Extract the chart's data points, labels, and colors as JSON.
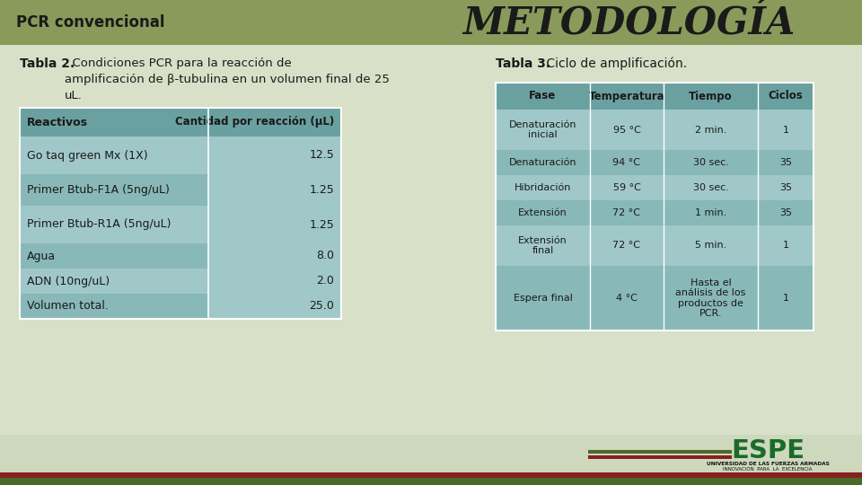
{
  "title": "METODOLOGÍA",
  "subtitle": "PCR convencional",
  "header_color": "#8a9a5b",
  "bg_color": "#d8e0c8",
  "table2_desc_bold": "Tabla 2.",
  "table2_desc_rest": "  Condiciones PCR para la reacción de\namplificación de β-tubulina en un volumen final de 25\nuL.",
  "table3_title_bold": "Tabla 3.",
  "table3_title_rest": " Ciclo de amplificación.",
  "table2_headers": [
    "Reactivos",
    "Cantidad por reacción (μL)"
  ],
  "table2_rows": [
    [
      "Go taq green Mx (1X)",
      "12.5"
    ],
    [
      "Primer Btub-F1A (5ng/uL)",
      "1.25"
    ],
    [
      "Primer Btub-R1A (5ng/uL)",
      "1.25"
    ],
    [
      "Agua",
      "8.0"
    ],
    [
      "ADN (10ng/uL)",
      "2.0"
    ],
    [
      "Volumen total.",
      "25.0"
    ]
  ],
  "table2_row_heights": [
    42,
    35,
    42,
    28,
    28,
    28
  ],
  "table3_headers": [
    "Fase",
    "Temperatura",
    "Tiempo",
    "Ciclos"
  ],
  "table3_rows": [
    [
      "Denaturación\ninicial",
      "95 °C",
      "2 min.",
      "1"
    ],
    [
      "Denaturación",
      "94 °C",
      "30 sec.",
      "35"
    ],
    [
      "Hibridación",
      "59 °C",
      "30 sec.",
      "35"
    ],
    [
      "Extensión",
      "72 °C",
      "1 min.",
      "35"
    ],
    [
      "Extensión\nfinal",
      "72 °C",
      "5 min.",
      "1"
    ],
    [
      "Espera final",
      "4 °C",
      "Hasta el\nanálisis de los\nproductos de\nPCR.",
      "1"
    ]
  ],
  "table3_row_heights": [
    45,
    28,
    28,
    28,
    45,
    72
  ],
  "teal_light": "#a0c8c8",
  "teal_mid": "#88b8b8",
  "teal_header": "#6aa0a0",
  "footer_green": "#4a6a2a",
  "footer_red": "#882020",
  "espe_green": "#1a6b2a",
  "text_dark": "#1a1a1a"
}
